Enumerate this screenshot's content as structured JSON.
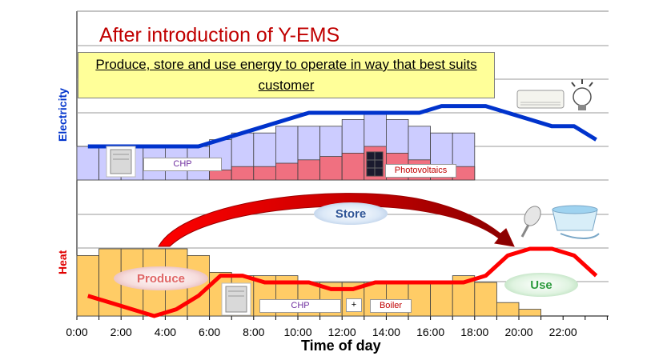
{
  "title": "After introduction of Y-EMS",
  "subtitle": "Produce, store and use energy to operate in way that best suits customer",
  "electricity_label": "Electricity",
  "heat_label": "Heat",
  "labels": {
    "chp_top": "CHP",
    "photovoltaics": "Photovoltaics",
    "chp_bottom": "CHP",
    "plus": "+",
    "boiler": "Boiler",
    "store": "Store",
    "produce": "Produce",
    "use": "Use"
  },
  "colors": {
    "title": "#c00000",
    "electric_line": "#0033cc",
    "heat_line": "#ff0000",
    "chp_bar": "#ccccff",
    "pv_bar": "#f07080",
    "heat_bar": "#ffcc66",
    "subtitle_bg": "#ffff99"
  },
  "chart_data": {
    "type": "bar",
    "xlabel": "Time of day",
    "xticks": [
      "0:00",
      "2:00",
      "4:00",
      "6:00",
      "8:00",
      "10:00",
      "12:00",
      "14:00",
      "16:00",
      "18:00",
      "20:00",
      "22:00"
    ],
    "electricity": {
      "ylabel": "Electricity",
      "bar_hours": [
        0,
        1,
        2,
        3,
        4,
        5,
        6,
        7,
        8,
        9,
        10,
        11,
        12,
        13,
        14,
        15,
        16,
        17
      ],
      "chp_total": [
        1.0,
        1.0,
        1.0,
        1.0,
        1.0,
        1.0,
        1.2,
        1.4,
        1.4,
        1.6,
        1.6,
        1.6,
        1.8,
        2.0,
        1.8,
        1.6,
        1.4,
        1.4
      ],
      "photovoltaics": [
        0,
        0,
        0,
        0,
        0,
        0,
        0.3,
        0.4,
        0.4,
        0.5,
        0.6,
        0.7,
        0.8,
        1.0,
        0.8,
        0.6,
        0.4,
        0.4
      ],
      "demand_line": {
        "hours": [
          0,
          1,
          2,
          3,
          4,
          5,
          6,
          7,
          8,
          9,
          10,
          11,
          12,
          13,
          14,
          15,
          16,
          17,
          18,
          19,
          20,
          21,
          22,
          23
        ],
        "values": [
          1.0,
          1.0,
          1.0,
          1.0,
          1.0,
          1.0,
          1.2,
          1.4,
          1.6,
          1.8,
          2.0,
          2.0,
          2.0,
          2.0,
          2.0,
          2.0,
          2.2,
          2.2,
          2.2,
          2.0,
          1.8,
          1.6,
          1.6,
          1.2
        ]
      }
    },
    "heat": {
      "ylabel": "Heat",
      "bar_hours": [
        0,
        1,
        2,
        3,
        4,
        5,
        6,
        7,
        8,
        9,
        10,
        11,
        12,
        13,
        14,
        15,
        16,
        17,
        18,
        19,
        20
      ],
      "values": [
        1.8,
        2.0,
        2.0,
        2.0,
        2.0,
        1.8,
        1.3,
        1.2,
        1.2,
        1.2,
        1.0,
        1.0,
        1.0,
        1.0,
        1.0,
        1.0,
        1.0,
        1.2,
        1.0,
        0.4,
        0.2
      ],
      "demand_line": {
        "hours": [
          0,
          1,
          2,
          3,
          4,
          5,
          6,
          7,
          8,
          9,
          10,
          11,
          12,
          13,
          14,
          15,
          16,
          17,
          18,
          19,
          20,
          21,
          22,
          23
        ],
        "values": [
          0.6,
          0.4,
          0.2,
          0.0,
          0.2,
          0.6,
          1.2,
          1.2,
          1.0,
          1.0,
          1.0,
          0.8,
          0.8,
          1.0,
          1.0,
          1.0,
          1.0,
          1.0,
          1.2,
          1.8,
          2.0,
          2.0,
          1.8,
          1.2
        ]
      }
    }
  }
}
